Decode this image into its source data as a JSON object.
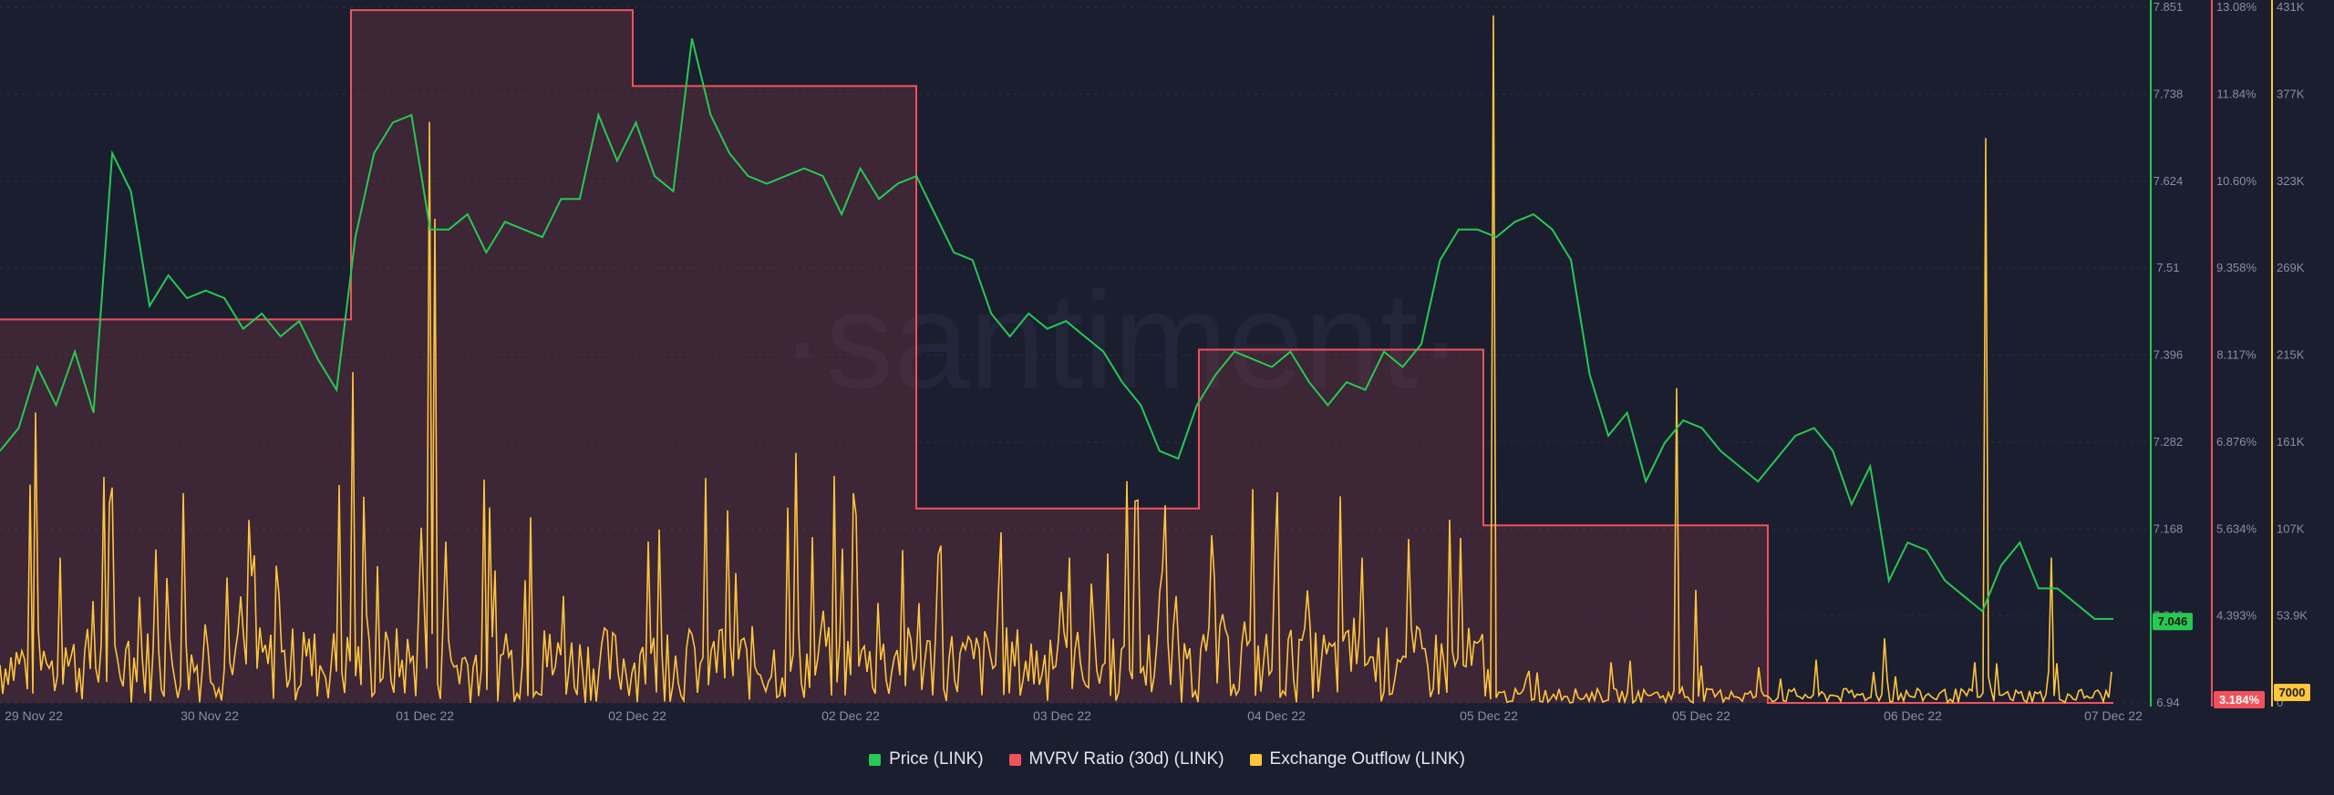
{
  "watermark": "·santiment·",
  "chart_data": {
    "type": "line",
    "x_labels": [
      "29 Nov 22",
      "30 Nov 22",
      "01 Dec 22",
      "02 Dec 22",
      "02 Dec 22",
      "03 Dec 22",
      "04 Dec 22",
      "05 Dec 22",
      "05 Dec 22",
      "06 Dec 22",
      "07 Dec 22"
    ],
    "price_axis": {
      "ticks": [
        "7.851",
        "7.738",
        "7.624",
        "7.51",
        "7.396",
        "7.282",
        "7.168",
        "7.046",
        "6.94"
      ],
      "min": 6.94,
      "max": 7.851
    },
    "mvrv_axis": {
      "ticks": [
        "13.08%",
        "11.84%",
        "10.60%",
        "9.358%",
        "8.117%",
        "6.876%",
        "5.634%",
        "4.393%",
        "3.184%"
      ],
      "min": 3.184,
      "max": 13.08
    },
    "outflow_axis": {
      "ticks": [
        "431K",
        "377K",
        "323K",
        "269K",
        "215K",
        "161K",
        "107K",
        "53.9K",
        "0"
      ],
      "min": 0,
      "max": 431000
    },
    "current_labels": {
      "price": "7.046",
      "mvrv": "3.184%",
      "outflow": "7000"
    },
    "series": [
      {
        "name": "Price (LINK)",
        "color": "#26c953",
        "axis": "price",
        "values": [
          7.27,
          7.3,
          7.38,
          7.33,
          7.4,
          7.32,
          7.66,
          7.61,
          7.46,
          7.5,
          7.47,
          7.48,
          7.47,
          7.43,
          7.45,
          7.42,
          7.44,
          7.39,
          7.35,
          7.55,
          7.66,
          7.7,
          7.71,
          7.56,
          7.56,
          7.58,
          7.53,
          7.57,
          7.56,
          7.55,
          7.6,
          7.6,
          7.71,
          7.65,
          7.7,
          7.63,
          7.61,
          7.81,
          7.71,
          7.66,
          7.63,
          7.62,
          7.63,
          7.64,
          7.63,
          7.58,
          7.64,
          7.6,
          7.62,
          7.63,
          7.58,
          7.53,
          7.52,
          7.45,
          7.42,
          7.45,
          7.43,
          7.44,
          7.42,
          7.4,
          7.36,
          7.33,
          7.27,
          7.26,
          7.33,
          7.37,
          7.4,
          7.39,
          7.38,
          7.4,
          7.36,
          7.33,
          7.36,
          7.35,
          7.4,
          7.38,
          7.41,
          7.52,
          7.56,
          7.56,
          7.55,
          7.57,
          7.58,
          7.56,
          7.52,
          7.37,
          7.29,
          7.32,
          7.23,
          7.28,
          7.31,
          7.3,
          7.27,
          7.25,
          7.23,
          7.26,
          7.29,
          7.3,
          7.27,
          7.2,
          7.25,
          7.1,
          7.15,
          7.14,
          7.1,
          7.08,
          7.06,
          7.12,
          7.15,
          7.09,
          7.09,
          7.07,
          7.05,
          7.05
        ]
      },
      {
        "name": "MVRV Ratio (30d) (LINK)",
        "color": "#f0525c",
        "axis": "mvrv",
        "steps": [
          {
            "x0": 0,
            "x1": 385,
            "value": 8.64
          },
          {
            "x0": 385,
            "x1": 694,
            "value": 13.04
          },
          {
            "x0": 694,
            "x1": 1005,
            "value": 11.96
          },
          {
            "x0": 1005,
            "x1": 1315,
            "value": 5.95
          },
          {
            "x0": 1315,
            "x1": 1627,
            "value": 8.21
          },
          {
            "x0": 1627,
            "x1": 1939,
            "value": 5.71
          },
          {
            "x0": 1939,
            "x1": 2318,
            "value": 3.184
          }
        ]
      },
      {
        "name": "Exchange Outflow (LINK)",
        "color": "#ffc53d",
        "axis": "outflow",
        "baseline": 15000,
        "spikes": [
          {
            "x": 38,
            "value": 180000
          },
          {
            "x": 67,
            "value": 90000
          },
          {
            "x": 115,
            "value": 140000
          },
          {
            "x": 200,
            "value": 130000
          },
          {
            "x": 302,
            "value": 85000
          },
          {
            "x": 372,
            "value": 135000
          },
          {
            "x": 387,
            "value": 205000
          },
          {
            "x": 470,
            "value": 360000
          },
          {
            "x": 476,
            "value": 300000
          },
          {
            "x": 490,
            "value": 100000
          },
          {
            "x": 583,
            "value": 115000
          },
          {
            "x": 712,
            "value": 100000
          },
          {
            "x": 873,
            "value": 155000
          },
          {
            "x": 935,
            "value": 130000
          },
          {
            "x": 1172,
            "value": 90000
          },
          {
            "x": 1244,
            "value": 125000
          },
          {
            "x": 1342,
            "value": 55000
          },
          {
            "x": 1470,
            "value": 128000
          },
          {
            "x": 1493,
            "value": 90000
          },
          {
            "x": 1637,
            "value": 426000
          },
          {
            "x": 1840,
            "value": 195000
          },
          {
            "x": 1859,
            "value": 70000
          },
          {
            "x": 2068,
            "value": 40000
          },
          {
            "x": 2178,
            "value": 350000
          },
          {
            "x": 2250,
            "value": 90000
          },
          {
            "x": 2318,
            "value": 7000
          }
        ]
      }
    ],
    "legend_position": "bottom"
  }
}
